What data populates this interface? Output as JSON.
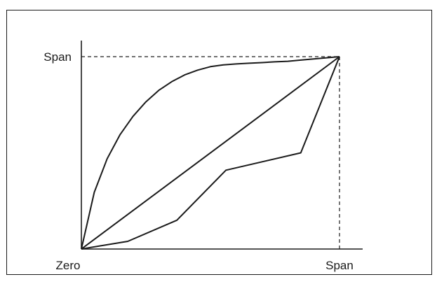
{
  "diagram": {
    "y_axis_top_label": "Span",
    "x_axis_origin_label": "Zero",
    "x_axis_end_label": "Span"
  },
  "chart_data": {
    "type": "line",
    "xlim": [
      0,
      1
    ],
    "ylim": [
      0,
      1
    ],
    "series": [
      {
        "x": [
          0,
          0.05,
          0.1,
          0.15,
          0.2,
          0.25,
          0.3,
          0.35,
          0.4,
          0.45,
          0.5,
          0.55,
          0.6,
          0.65,
          0.7,
          0.75,
          0.8,
          0.85,
          0.9,
          0.95,
          1.0
        ],
        "y": [
          0,
          0.295,
          0.47,
          0.595,
          0.69,
          0.765,
          0.825,
          0.87,
          0.905,
          0.93,
          0.948,
          0.957,
          0.962,
          0.966,
          0.969,
          0.973,
          0.976,
          0.982,
          0.988,
          0.994,
          1.0
        ]
      },
      {
        "x": [
          0,
          1
        ],
        "y": [
          0,
          1
        ]
      },
      {
        "x": [
          0,
          0.18,
          0.37,
          0.56,
          0.85,
          1.0
        ],
        "y": [
          0,
          0.04,
          0.15,
          0.41,
          0.5,
          1.0
        ]
      }
    ],
    "grid": false
  }
}
